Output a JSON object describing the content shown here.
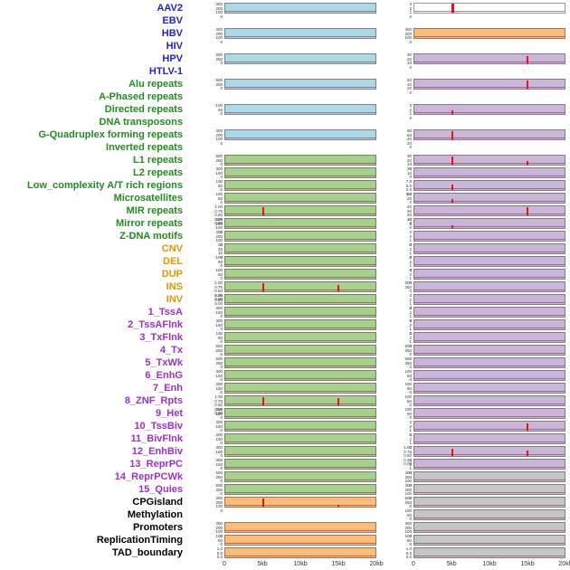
{
  "label_colors": {
    "virus": "#2222cc",
    "repeat": "#228b22",
    "sv": "#e69500",
    "chromhmm": "#9932cc",
    "other": "#000000"
  },
  "track_colors": {
    "blue": "#add8e6",
    "green": "#a8d08d",
    "orange": "#ffbb77",
    "purple": "#c9b6d9",
    "gray": "#c6c6c6",
    "white": "#ffffff",
    "peak": "#ee1111",
    "baseline": "rgba(150,40,90,0.6)"
  },
  "chart_data": {
    "type": "line",
    "subtype": "genomic_signal_tracks_small_multiples",
    "columns": 2,
    "x_range_kb": [
      0,
      20
    ],
    "x_tick_labels": [
      "0",
      "5kb",
      "10kb",
      "15kb",
      "20kb"
    ],
    "grid": false,
    "legend": "none",
    "rows": [
      {
        "label": "AAV2",
        "category": "virus",
        "left": {
          "bg": "blue",
          "yticks": [
            "300",
            "200",
            "100",
            "0"
          ],
          "peaks": []
        },
        "right": {
          "bg": "white",
          "yticks": [
            "3",
            "2",
            "1",
            "0"
          ],
          "peaks": [
            {
              "x_kb": 5,
              "rel_height": 1.0,
              "w": 3
            }
          ]
        }
      },
      {
        "label": "EBV",
        "category": "virus",
        "left": null,
        "right": null
      },
      {
        "label": "HBV",
        "category": "virus",
        "left": {
          "bg": "blue",
          "yticks": [
            "300",
            "200",
            "100",
            "0"
          ],
          "peaks": []
        },
        "right": {
          "bg": "orange",
          "yticks": [
            "300",
            "200",
            "100",
            "0"
          ],
          "peaks": []
        }
      },
      {
        "label": "HIV",
        "category": "virus",
        "left": null,
        "right": null
      },
      {
        "label": "HPV",
        "category": "virus",
        "left": {
          "bg": "blue",
          "yticks": [
            "500",
            "250",
            "0"
          ],
          "peaks": []
        },
        "right": {
          "bg": "purple",
          "yticks": [
            "30",
            "20",
            "10",
            "0"
          ],
          "peaks": [
            {
              "x_kb": 15,
              "rel_height": 0.8
            }
          ]
        }
      },
      {
        "label": "HTLV-1",
        "category": "virus",
        "left": null,
        "right": null
      },
      {
        "label": "Alu repeats",
        "category": "repeat",
        "left": {
          "bg": "blue",
          "yticks": [
            "500",
            "250",
            "0"
          ],
          "peaks": []
        },
        "right": {
          "bg": "purple",
          "yticks": [
            "60",
            "40",
            "20",
            "0"
          ],
          "peaks": [
            {
              "x_kb": 15,
              "rel_height": 0.9
            }
          ]
        }
      },
      {
        "label": "A-Phased repeats",
        "category": "repeat",
        "left": null,
        "right": null
      },
      {
        "label": "Directed repeats",
        "category": "repeat",
        "left": {
          "bg": "blue",
          "yticks": [
            "100",
            "50",
            "0"
          ],
          "peaks": []
        },
        "right": {
          "bg": "purple",
          "yticks": [
            "3",
            "2",
            "1",
            "0"
          ],
          "peaks": [
            {
              "x_kb": 5,
              "rel_height": 0.45
            }
          ]
        }
      },
      {
        "label": "DNA transposons",
        "category": "repeat",
        "left": null,
        "right": null
      },
      {
        "label": "G-Quadruplex forming repeats",
        "category": "repeat",
        "left": {
          "bg": "blue",
          "yticks": [
            "300",
            "200",
            "100",
            "0"
          ],
          "peaks": []
        },
        "right": {
          "bg": "purple",
          "yticks": [
            "80",
            "60",
            "40",
            "20",
            "0"
          ],
          "peaks": [
            {
              "x_kb": 5,
              "rel_height": 0.95
            }
          ]
        }
      },
      {
        "label": "Inverted repeats",
        "category": "repeat",
        "left": null,
        "right": null
      },
      {
        "label": "L1 repeats",
        "category": "repeat",
        "left": {
          "bg": "green",
          "yticks": [
            "500",
            "250",
            "0"
          ],
          "peaks": []
        },
        "right": {
          "bg": "purple",
          "yticks": [
            "30",
            "20",
            "10",
            "0"
          ],
          "peaks": [
            {
              "x_kb": 5,
              "rel_height": 0.9
            },
            {
              "x_kb": 15,
              "rel_height": 0.45
            }
          ]
        }
      },
      {
        "label": "L2 repeats",
        "category": "repeat",
        "left": {
          "bg": "green",
          "yticks": [
            "300",
            "150",
            "0"
          ],
          "peaks": []
        },
        "right": {
          "bg": "purple",
          "yticks": [
            "20",
            "10",
            "0"
          ],
          "peaks": []
        }
      },
      {
        "label": "Low_complexity A/T rich regions",
        "category": "repeat",
        "left": {
          "bg": "green",
          "yticks": [
            "100",
            "50",
            "0"
          ],
          "peaks": []
        },
        "right": {
          "bg": "purple",
          "yticks": [
            "7.5",
            "5.0",
            "2.5",
            "0.0"
          ],
          "peaks": [
            {
              "x_kb": 5,
              "rel_height": 0.65
            }
          ]
        }
      },
      {
        "label": "Microsatellites",
        "category": "repeat",
        "left": {
          "bg": "green",
          "yticks": [
            "100",
            "50",
            "0"
          ],
          "peaks": []
        },
        "right": {
          "bg": "purple",
          "yticks": [
            "40",
            "20",
            "0"
          ],
          "peaks": [
            {
              "x_kb": 5,
              "rel_height": 0.4
            }
          ]
        }
      },
      {
        "label": "MIR repeats",
        "category": "repeat",
        "left": {
          "bg": "green",
          "yticks": [
            "1.00",
            "0.75",
            "0.50",
            "0.25",
            "0.00"
          ],
          "peaks": [
            {
              "x_kb": 5,
              "rel_height": 0.9
            }
          ]
        },
        "right": {
          "bg": "purple",
          "yticks": [
            "40",
            "30",
            "20",
            "10",
            "0"
          ],
          "peaks": [
            {
              "x_kb": 15,
              "rel_height": 0.9
            }
          ]
        }
      },
      {
        "label": "Mirror repeats",
        "category": "repeat",
        "left": {
          "bg": "green",
          "yticks": [
            "300",
            "200",
            "100",
            "0"
          ],
          "peaks": []
        },
        "right": {
          "bg": "purple",
          "yticks": [
            "10",
            "5",
            "0"
          ],
          "peaks": [
            {
              "x_kb": 5,
              "rel_height": 0.3
            }
          ]
        }
      },
      {
        "label": "Z-DNA motifs",
        "category": "repeat",
        "left": {
          "bg": "green",
          "yticks": [
            "300",
            "200",
            "100",
            "0"
          ],
          "peaks": []
        },
        "right": {
          "bg": "purple",
          "yticks": [
            "3",
            "2",
            "1",
            "0"
          ],
          "peaks": []
        }
      },
      {
        "label": "CNV",
        "category": "sv",
        "left": {
          "bg": "green",
          "yticks": [
            "30",
            "20",
            "10",
            "0"
          ],
          "peaks": []
        },
        "right": {
          "bg": "purple",
          "yticks": [
            "3",
            "2",
            "1",
            "0"
          ],
          "peaks": []
        }
      },
      {
        "label": "DEL",
        "category": "sv",
        "left": {
          "bg": "green",
          "yticks": [
            "100",
            "50",
            "0"
          ],
          "peaks": []
        },
        "right": {
          "bg": "purple",
          "yticks": [
            "3",
            "2",
            "1",
            "0"
          ],
          "peaks": []
        }
      },
      {
        "label": "DUP",
        "category": "sv",
        "left": {
          "bg": "green",
          "yticks": [
            "100",
            "50",
            "0"
          ],
          "peaks": []
        },
        "right": {
          "bg": "purple",
          "yticks": [
            "3",
            "2",
            "1",
            "0"
          ],
          "peaks": []
        }
      },
      {
        "label": "INS",
        "category": "sv",
        "left": {
          "bg": "green",
          "yticks": [
            "1.00",
            "0.75",
            "0.50",
            "0.25",
            "0.00"
          ],
          "peaks": [
            {
              "x_kb": 5,
              "rel_height": 0.95
            },
            {
              "x_kb": 15,
              "rel_height": 0.7
            }
          ]
        },
        "right": {
          "bg": "purple",
          "yticks": [
            "500",
            "250",
            "0"
          ],
          "peaks": []
        }
      },
      {
        "label": "INV",
        "category": "sv",
        "left": {
          "bg": "green",
          "yticks": [
            "1.00",
            "0.50",
            "0.00"
          ],
          "peaks": []
        },
        "right": {
          "bg": "purple",
          "yticks": [
            "3",
            "2",
            "1",
            "0"
          ],
          "peaks": []
        }
      },
      {
        "label": "1_TssA",
        "category": "chromhmm",
        "left": {
          "bg": "green",
          "yticks": [
            "300",
            "150",
            "0"
          ],
          "peaks": []
        },
        "right": {
          "bg": "purple",
          "yticks": [
            "3",
            "2",
            "1",
            "0"
          ],
          "peaks": []
        }
      },
      {
        "label": "2_TssAFlnk",
        "category": "chromhmm",
        "left": {
          "bg": "green",
          "yticks": [
            "300",
            "150",
            "0"
          ],
          "peaks": []
        },
        "right": {
          "bg": "purple",
          "yticks": [
            "3",
            "2",
            "1",
            "0"
          ],
          "peaks": []
        }
      },
      {
        "label": "3_TxFlnk",
        "category": "chromhmm",
        "left": {
          "bg": "green",
          "yticks": [
            "100",
            "50",
            "0"
          ],
          "peaks": []
        },
        "right": {
          "bg": "purple",
          "yticks": [
            "3",
            "2",
            "1",
            "0"
          ],
          "peaks": []
        }
      },
      {
        "label": "4_Tx",
        "category": "chromhmm",
        "left": {
          "bg": "green",
          "yticks": [
            "500",
            "250",
            "0"
          ],
          "peaks": []
        },
        "right": {
          "bg": "purple",
          "yticks": [
            "500",
            "250",
            "0"
          ],
          "peaks": []
        }
      },
      {
        "label": "5_TxWk",
        "category": "chromhmm",
        "left": {
          "bg": "green",
          "yticks": [
            "500",
            "250",
            "0"
          ],
          "peaks": []
        },
        "right": {
          "bg": "purple",
          "yticks": [
            "500",
            "250",
            "0"
          ],
          "peaks": []
        }
      },
      {
        "label": "6_EnhG",
        "category": "chromhmm",
        "left": {
          "bg": "green",
          "yticks": [
            "300",
            "150",
            "0"
          ],
          "peaks": []
        },
        "right": {
          "bg": "purple",
          "yticks": [
            "100",
            "50",
            "0"
          ],
          "peaks": []
        }
      },
      {
        "label": "7_Enh",
        "category": "chromhmm",
        "left": {
          "bg": "green",
          "yticks": [
            "300",
            "150",
            "0"
          ],
          "peaks": []
        },
        "right": {
          "bg": "purple",
          "yticks": [
            "100",
            "50",
            "0"
          ],
          "peaks": []
        }
      },
      {
        "label": "8_ZNF_Rpts",
        "category": "chromhmm",
        "left": {
          "bg": "green",
          "yticks": [
            "1.00",
            "0.75",
            "0.50",
            "0.25",
            "0.00"
          ],
          "peaks": [
            {
              "x_kb": 5,
              "rel_height": 0.95
            },
            {
              "x_kb": 15,
              "rel_height": 0.85
            }
          ]
        },
        "right": {
          "bg": "purple",
          "yticks": [
            "100",
            "50",
            "0"
          ],
          "peaks": []
        }
      },
      {
        "label": "9_Het",
        "category": "chromhmm",
        "left": {
          "bg": "green",
          "yticks": [
            "300",
            "150",
            "0"
          ],
          "peaks": []
        },
        "right": {
          "bg": "purple",
          "yticks": [
            "100",
            "50",
            "0"
          ],
          "peaks": []
        }
      },
      {
        "label": "10_TssBiv",
        "category": "chromhmm",
        "left": {
          "bg": "green",
          "yticks": [
            "300",
            "150",
            "0"
          ],
          "peaks": []
        },
        "right": {
          "bg": "purple",
          "yticks": [
            "3",
            "2",
            "1",
            "0"
          ],
          "peaks": [
            {
              "x_kb": 15,
              "rel_height": 0.85
            }
          ]
        }
      },
      {
        "label": "11_BivFlnk",
        "category": "chromhmm",
        "left": {
          "bg": "green",
          "yticks": [
            "300",
            "150",
            "0"
          ],
          "peaks": []
        },
        "right": {
          "bg": "purple",
          "yticks": [
            "3",
            "2",
            "1",
            "0"
          ],
          "peaks": []
        }
      },
      {
        "label": "12_EnhBiv",
        "category": "chromhmm",
        "left": {
          "bg": "green",
          "yticks": [
            "300",
            "150",
            "0"
          ],
          "peaks": []
        },
        "right": {
          "bg": "purple",
          "yticks": [
            "1.00",
            "0.75",
            "0.50",
            "0.25",
            "0.00"
          ],
          "peaks": [
            {
              "x_kb": 5,
              "rel_height": 0.8
            },
            {
              "x_kb": 15,
              "rel_height": 0.6
            }
          ]
        }
      },
      {
        "label": "13_ReprPC",
        "category": "chromhmm",
        "left": {
          "bg": "green",
          "yticks": [
            "300",
            "150",
            "0"
          ],
          "peaks": []
        },
        "right": {
          "bg": "purple",
          "yticks": [
            "3",
            "2",
            "1",
            "0"
          ],
          "peaks": []
        }
      },
      {
        "label": "14_ReprPCWk",
        "category": "chromhmm",
        "left": {
          "bg": "green",
          "yticks": [
            "500",
            "250",
            "0"
          ],
          "peaks": []
        },
        "right": {
          "bg": "gray",
          "yticks": [
            "300",
            "200",
            "100",
            "0"
          ],
          "peaks": []
        }
      },
      {
        "label": "15_Quies",
        "category": "chromhmm",
        "left": {
          "bg": "green",
          "yticks": [
            "500",
            "250",
            "0"
          ],
          "peaks": []
        },
        "right": {
          "bg": "gray",
          "yticks": [
            "300",
            "200",
            "100",
            "0"
          ],
          "peaks": []
        }
      },
      {
        "label": "CPGisland",
        "category": "other",
        "left": {
          "bg": "orange",
          "yticks": [
            "300",
            "200",
            "100",
            "0"
          ],
          "peaks": [
            {
              "x_kb": 5,
              "rel_height": 0.95
            },
            {
              "x_kb": 15,
              "rel_height": 0.25
            }
          ]
        },
        "right": {
          "bg": "gray",
          "yticks": [
            "500",
            "250",
            "0"
          ],
          "peaks": []
        }
      },
      {
        "label": "Methylation",
        "category": "other",
        "left": null,
        "right": {
          "bg": "gray",
          "yticks": [
            "100",
            "50",
            "0"
          ],
          "peaks": []
        }
      },
      {
        "label": "Promoters",
        "category": "other",
        "left": {
          "bg": "orange",
          "yticks": [
            "300",
            "200",
            "100",
            "0"
          ],
          "peaks": []
        },
        "right": {
          "bg": "gray",
          "yticks": [
            "300",
            "200",
            "100",
            "0"
          ],
          "peaks": []
        }
      },
      {
        "label": "ReplicationTiming",
        "category": "other",
        "left": {
          "bg": "orange",
          "yticks": [
            "100",
            "50",
            "0"
          ],
          "peaks": []
        },
        "right": {
          "bg": "gray",
          "yticks": [
            "100",
            "50",
            "0"
          ],
          "peaks": []
        }
      },
      {
        "label": "TAD_boundary",
        "category": "other",
        "left": {
          "bg": "orange",
          "yticks": [
            "1.0",
            "0.5",
            "0.0"
          ],
          "peaks": []
        },
        "right": {
          "bg": "gray",
          "yticks": [
            "1.0",
            "0.5",
            "0.0"
          ],
          "peaks": []
        }
      }
    ]
  }
}
